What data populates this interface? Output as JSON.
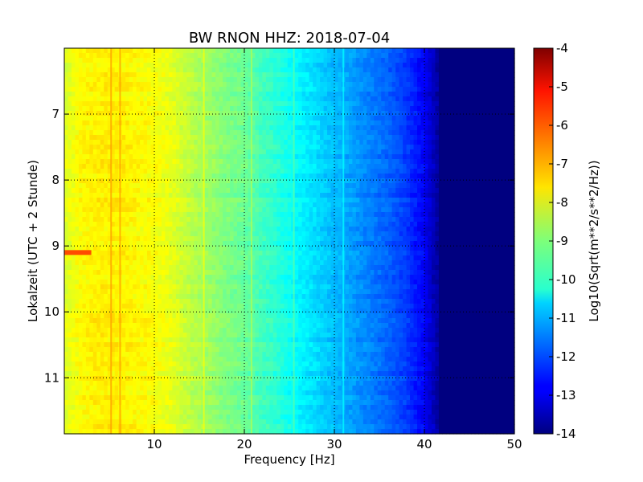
{
  "chart_data": {
    "type": "heatmap",
    "title": "BW RNON HHZ: 2018-07-04",
    "xlabel": "Frequency [Hz]",
    "ylabel": "Lokalzeit (UTC + 2 Stunde)",
    "xlim": [
      0,
      50
    ],
    "ylim": [
      11.85,
      6.0
    ],
    "y_inverted": true,
    "grid": true,
    "x_ticks": [
      "10",
      "20",
      "30",
      "40",
      "50"
    ],
    "y_ticks": [
      "7",
      "8",
      "9",
      "10",
      "11"
    ],
    "colormap": "jet",
    "colorbar": {
      "label": "Log10(Sqrt(m**2/s**2/Hz))",
      "range": [
        -14,
        -4
      ],
      "ticks": [
        "-4",
        "-5",
        "-6",
        "-7",
        "-8",
        "-9",
        "-10",
        "-11",
        "-12",
        "-13",
        "-14"
      ]
    },
    "spectrum_profile": {
      "frequency_hz": [
        0,
        2,
        4,
        6,
        8,
        10,
        12,
        14,
        16,
        18,
        20,
        22,
        24,
        26,
        28,
        30,
        32,
        34,
        36,
        38,
        40,
        41,
        42,
        50
      ],
      "log10_amplitude": [
        -8.1,
        -7.7,
        -7.6,
        -7.6,
        -7.7,
        -7.8,
        -8.0,
        -8.4,
        -8.7,
        -9.0,
        -9.2,
        -9.6,
        -9.9,
        -10.3,
        -10.6,
        -10.9,
        -11.2,
        -11.5,
        -11.8,
        -12.2,
        -12.8,
        -13.4,
        -14.0,
        -14.0
      ]
    },
    "features": [
      {
        "label": "vertical lines",
        "frequency_hz": [
          5.2,
          6.2,
          15.5,
          20.8,
          25.5,
          31
        ]
      },
      {
        "label": "strong event",
        "time": 9.1,
        "frequency_hz": [
          0,
          3
        ],
        "log10_amplitude": -6.0
      }
    ]
  }
}
